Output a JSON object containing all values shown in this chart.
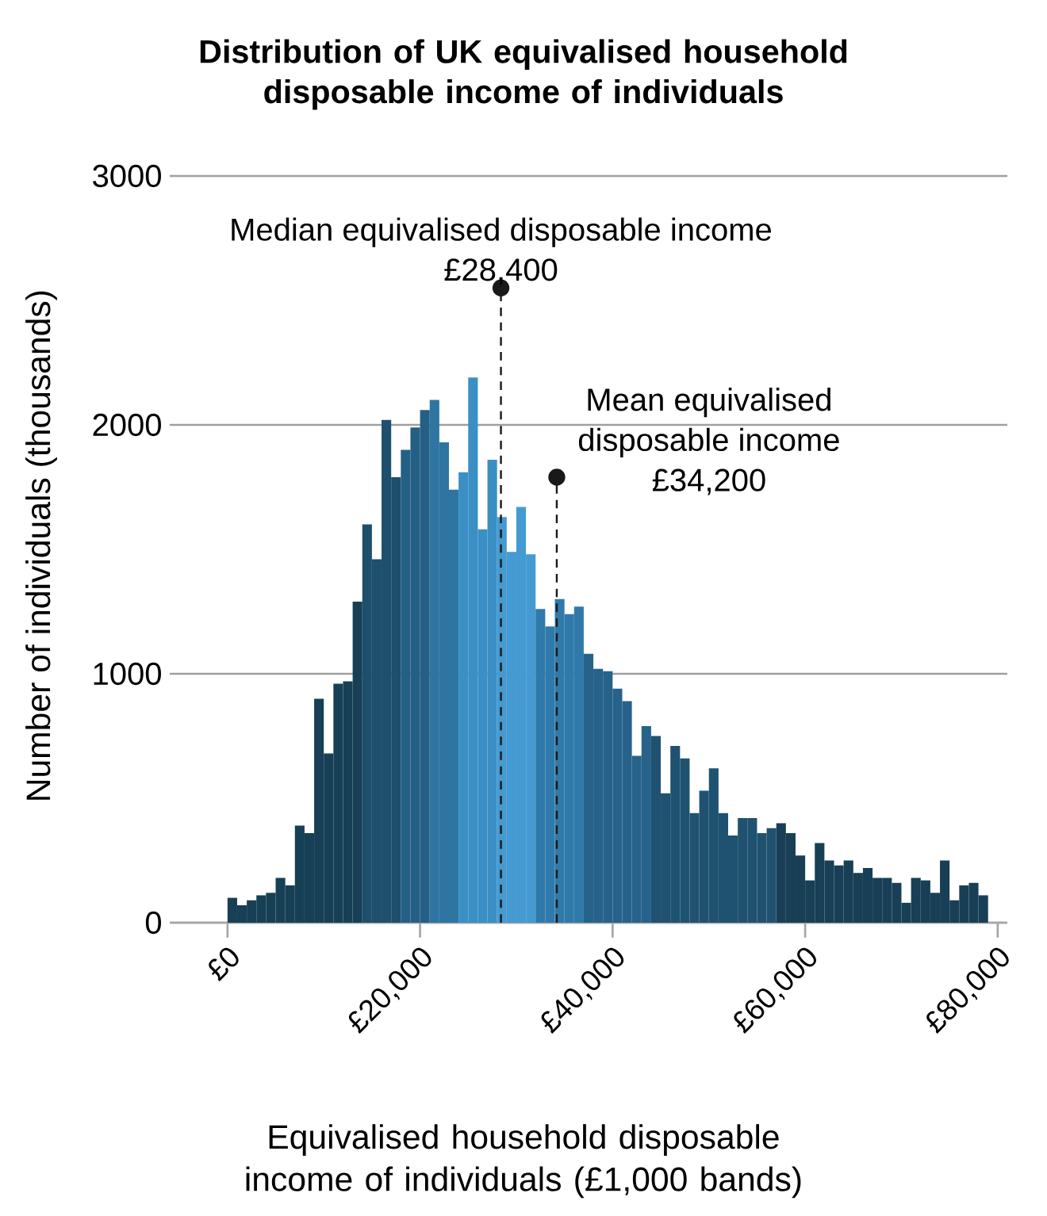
{
  "chart_data": {
    "type": "histogram",
    "title": "Distribution of UK equivalised household disposable income of individuals",
    "xlabel": "Equivalised household disposable income of individuals (£1,000 bands)",
    "ylabel": "Number of individuals (thousands)",
    "bins": [
      0,
      1000,
      2000,
      3000,
      4000,
      5000,
      6000,
      7000,
      8000,
      9000,
      10000,
      11000,
      12000,
      13000,
      14000,
      15000,
      16000,
      17000,
      18000,
      19000,
      20000,
      21000,
      22000,
      23000,
      24000,
      25000,
      26000,
      27000,
      28000,
      29000,
      30000,
      31000,
      32000,
      33000,
      34000,
      35000,
      36000,
      37000,
      38000,
      39000,
      40000,
      41000,
      42000,
      43000,
      44000,
      45000,
      46000,
      47000,
      48000,
      49000,
      50000,
      51000,
      52000,
      53000,
      54000,
      55000,
      56000,
      57000,
      58000,
      59000,
      60000,
      61000,
      62000,
      63000,
      64000,
      65000,
      66000,
      67000,
      68000,
      69000,
      70000,
      71000,
      72000,
      73000,
      74000,
      75000,
      76000,
      77000,
      78000,
      79000
    ],
    "values": [
      100,
      70,
      90,
      110,
      120,
      180,
      150,
      390,
      360,
      900,
      680,
      960,
      970,
      1290,
      1600,
      1460,
      2020,
      1790,
      1900,
      1990,
      2060,
      2100,
      1930,
      1740,
      1810,
      2190,
      1580,
      1860,
      1630,
      1490,
      1670,
      1480,
      1260,
      1190,
      1300,
      1240,
      1270,
      1080,
      1020,
      1010,
      940,
      890,
      670,
      790,
      750,
      520,
      710,
      660,
      440,
      530,
      620,
      440,
      350,
      420,
      420,
      360,
      380,
      400,
      360,
      270,
      170,
      320,
      250,
      230,
      250,
      200,
      220,
      180,
      180,
      160,
      80,
      180,
      170,
      120,
      250,
      90,
      150,
      160,
      110
    ],
    "colors": [
      "#173f55",
      "#173f55",
      "#173f55",
      "#173f55",
      "#173f55",
      "#173f55",
      "#173f55",
      "#173f55",
      "#173f55",
      "#173f55",
      "#173f55",
      "#173f55",
      "#173f55",
      "#173f55",
      "#1e4f6c",
      "#1e4f6c",
      "#1e4f6c",
      "#1e4f6c",
      "#245f85",
      "#245f85",
      "#245f85",
      "#2e75a2",
      "#2e75a2",
      "#2e75a2",
      "#3a8fc5",
      "#3a8fc5",
      "#3a8fc5",
      "#3a8fc5",
      "#459bd1",
      "#459bd1",
      "#459bd1",
      "#459bd1",
      "#2f7aab",
      "#2f7aab",
      "#2f7aab",
      "#2f7aab",
      "#2f7aab",
      "#26628a",
      "#26628a",
      "#26628a",
      "#26628a",
      "#26628a",
      "#26628a",
      "#26628a",
      "#1f5270",
      "#1f5270",
      "#1f5270",
      "#1f5270",
      "#1f5270",
      "#1f5270",
      "#1f5270",
      "#1f5270",
      "#1f5270",
      "#1f5270",
      "#1f5270",
      "#1f5270",
      "#1f5270",
      "#183f55",
      "#183f55",
      "#183f55",
      "#183f55",
      "#183f55",
      "#183f55",
      "#183f55",
      "#183f55",
      "#183f55",
      "#183f55",
      "#183f55",
      "#183f55",
      "#183f55",
      "#183f55",
      "#183f55",
      "#183f55",
      "#183f55",
      "#183f55",
      "#183f55",
      "#183f55",
      "#183f55",
      "#183f55"
    ],
    "xlim": [
      -6000,
      81000
    ],
    "ylim": [
      0,
      3000
    ],
    "xticks": [
      {
        "value": 0,
        "label": "£0"
      },
      {
        "value": 20000,
        "label": "£20,000"
      },
      {
        "value": 40000,
        "label": "£40,000"
      },
      {
        "value": 60000,
        "label": "£60,000"
      },
      {
        "value": 80000,
        "label": "£80,000"
      }
    ],
    "yticks": [
      0,
      1000,
      2000,
      3000
    ],
    "grid": "y",
    "ref_lines": [
      {
        "axis": "x",
        "value": 28400,
        "line_style": "dashed"
      },
      {
        "axis": "x",
        "value": 34200,
        "line_style": "dashed"
      }
    ],
    "annotations": [
      {
        "text": "Median equivalised disposable income £28,400",
        "x": 28400,
        "y": 2550
      },
      {
        "text": "Mean equivalised disposable income £34,200",
        "x": 34200,
        "y": 1790
      }
    ]
  }
}
